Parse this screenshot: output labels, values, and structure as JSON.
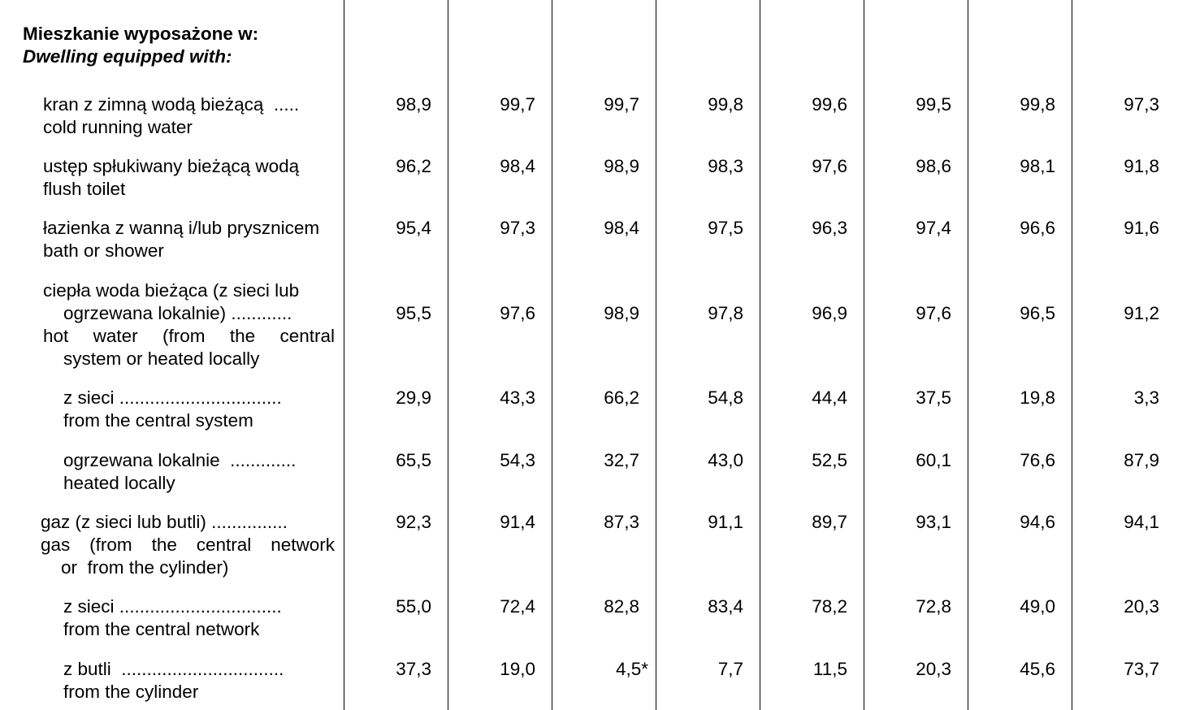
{
  "heading": {
    "pl": "Mieszkanie wyposażone w:",
    "en": "Dwelling equipped with:"
  },
  "rows": [
    {
      "pl": "kran z zimną wodą bieżącą  .....",
      "en": "cold running water",
      "values": [
        "98,9",
        "99,7",
        "99,7",
        "99,8",
        "99,6",
        "99,5",
        "99,8",
        "97,3"
      ]
    },
    {
      "pl": "ustęp spłukiwany bieżącą wodą",
      "en": "flush toilet",
      "values": [
        "96,2",
        "98,4",
        "98,9",
        "98,3",
        "97,6",
        "98,6",
        "98,1",
        "91,8"
      ]
    },
    {
      "pl": "łazienka z wanną i/lub prysznicem",
      "en": "bath or shower",
      "values": [
        "95,4",
        "97,3",
        "98,4",
        "97,5",
        "96,3",
        "97,4",
        "96,6",
        "91,6"
      ]
    },
    {
      "pl1": "ciepła woda bieżąca (z sieci lub",
      "pl2": "ogrzewana lokalnie) ............",
      "en1": "hot water (from the central",
      "en2": "system or heated locally",
      "values": [
        "95,5",
        "97,6",
        "98,9",
        "97,8",
        "96,9",
        "97,6",
        "96,5",
        "91,2"
      ]
    },
    {
      "pl": "z sieci ................................",
      "en": "from the central system",
      "values": [
        "29,9",
        "43,3",
        "66,2",
        "54,8",
        "44,4",
        "37,5",
        "19,8",
        "3,3"
      ]
    },
    {
      "pl": "ogrzewana lokalnie  .............",
      "en": "heated locally",
      "values": [
        "65,5",
        "54,3",
        "32,7",
        "43,0",
        "52,5",
        "60,1",
        "76,6",
        "87,9"
      ]
    },
    {
      "pl": "gaz (z sieci lub butli) ...............",
      "en1": "gas (from the central network",
      "en2": "or  from the cylinder)",
      "values": [
        "92,3",
        "91,4",
        "87,3",
        "91,1",
        "89,7",
        "93,1",
        "94,6",
        "94,1"
      ]
    },
    {
      "pl": "z sieci ................................",
      "en": "from the central network",
      "values": [
        "55,0",
        "72,4",
        "82,8",
        "83,4",
        "78,2",
        "72,8",
        "49,0",
        "20,3"
      ]
    },
    {
      "pl": "z butli  ................................",
      "en": "from the cylinder",
      "values": [
        "37,3",
        "19,0",
        "4,5*",
        "7,7",
        "11,5",
        "20,3",
        "45,6",
        "73,7"
      ]
    }
  ]
}
